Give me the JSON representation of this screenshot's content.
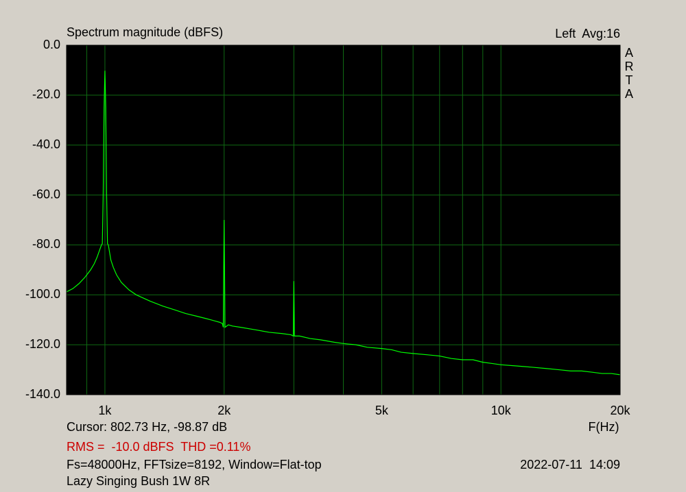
{
  "chart_data": {
    "type": "line",
    "title": "Spectrum magnitude (dBFS)",
    "channel_info": "Left  Avg:16",
    "logo": "ARTA",
    "x_label": "F(Hz)",
    "cursor": "Cursor: 802.73 Hz, -98.87 dB",
    "measurement": "RMS =  -10.0 dBFS  THD =0.11%",
    "settings": "Fs=48000Hz, FFTsize=8192, Window=Flat-top",
    "timestamp": "2022-07-11  14:09",
    "device": "Lazy Singing Bush 1W 8R",
    "x_scale": "log",
    "xlim": [
      800,
      20000
    ],
    "ylim": [
      -140,
      0
    ],
    "xticks": [
      {
        "value": 1000,
        "label": "1k"
      },
      {
        "value": 2000,
        "label": "2k"
      },
      {
        "value": 5000,
        "label": "5k"
      },
      {
        "value": 10000,
        "label": "10k"
      },
      {
        "value": 20000,
        "label": "20k"
      }
    ],
    "x_minor_grid": [
      900,
      3000,
      4000,
      6000,
      7000,
      8000,
      9000
    ],
    "yticks": [
      {
        "value": 0,
        "label": "0.0"
      },
      {
        "value": -20,
        "label": "-20.0"
      },
      {
        "value": -40,
        "label": "-40.0"
      },
      {
        "value": -60,
        "label": "-60.0"
      },
      {
        "value": -80,
        "label": "-80.0"
      },
      {
        "value": -100,
        "label": "-100.0"
      },
      {
        "value": -120,
        "label": "-120.0"
      },
      {
        "value": -140,
        "label": "-140.0"
      }
    ],
    "grid": true,
    "grid_color": "#0f6a12",
    "plot_background": "#000000",
    "measurement_color": "#cc0000",
    "series": [
      {
        "color": "#00ff00",
        "x": [
          800,
          830,
          860,
          890,
          920,
          940,
          955,
          965,
          975,
          980,
          985,
          990,
          995,
          1000,
          1005,
          1010,
          1015,
          1020,
          1025,
          1035,
          1050,
          1070,
          1100,
          1150,
          1200,
          1300,
          1400,
          1500,
          1600,
          1700,
          1800,
          1850,
          1900,
          1950,
          1980,
          1990,
          1995,
          2000,
          2005,
          2010,
          2050,
          2100,
          2200,
          2400,
          2600,
          2800,
          2950,
          2990,
          2995,
          3000,
          3005,
          3010,
          3100,
          3300,
          3500,
          3800,
          4000,
          4300,
          4600,
          5000,
          5300,
          5600,
          6000,
          6500,
          7000,
          7500,
          8000,
          8500,
          9000,
          9500,
          10000,
          11000,
          12000,
          13000,
          14000,
          15000,
          16000,
          17000,
          18000,
          19000,
          20000
        ],
        "values": [
          -98.8,
          -97.5,
          -95.5,
          -93,
          -90,
          -87.5,
          -85,
          -83,
          -81,
          -80,
          -79.5,
          -60,
          -25,
          -10.2,
          -25,
          -60,
          -79.5,
          -80,
          -82,
          -86,
          -89,
          -92,
          -95,
          -98,
          -100,
          -102.5,
          -104.5,
          -106,
          -107.5,
          -108.5,
          -109.5,
          -110,
          -110.5,
          -111,
          -111.5,
          -113,
          -90,
          -70,
          -90,
          -113,
          -112,
          -112.5,
          -113,
          -114,
          -115,
          -115.5,
          -116,
          -116.5,
          -105,
          -94.5,
          -105,
          -116.5,
          -116.5,
          -117.5,
          -118,
          -119,
          -119.5,
          -120,
          -121,
          -121.5,
          -122,
          -123,
          -123.5,
          -124,
          -124.5,
          -125.5,
          -126,
          -126,
          -127,
          -127.5,
          -128,
          -128.5,
          -129,
          -129.5,
          -130,
          -130.5,
          -130.5,
          -131,
          -131.5,
          -131.5,
          -132
        ]
      }
    ]
  }
}
